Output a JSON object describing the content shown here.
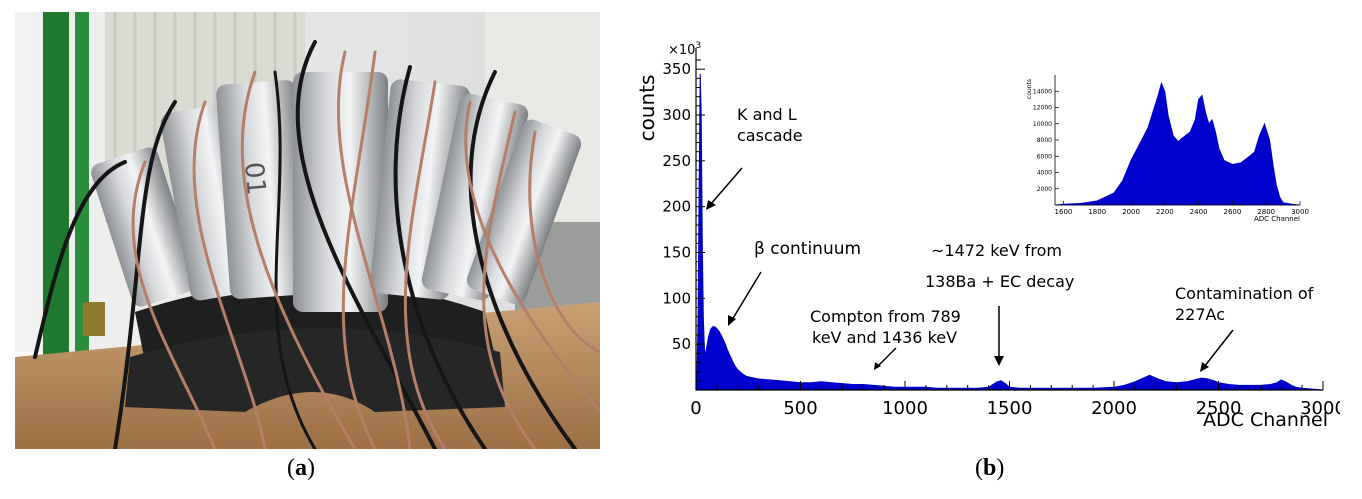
{
  "captions": {
    "a": {
      "open": "(",
      "letter": "a",
      "close": ")"
    },
    "b": {
      "open": "(",
      "letter": "b",
      "close": ")"
    }
  },
  "photo": {
    "stamp": "01",
    "colors": {
      "detector": "#b9bcc0",
      "base": "#1f1f1f",
      "table": "#b98a5d",
      "cable_copper": "#b47e6a",
      "cable_black": "#151515",
      "wall": "#e6e8e6",
      "green_frame": "#1f7a30"
    }
  },
  "chart_data": {
    "type": "area",
    "color": "#0000cc",
    "xlabel": "ADC Channel",
    "ylabel": "counts",
    "y_multiplier": "×10",
    "y_multiplier_exp": "3",
    "xlim": [
      0,
      3000
    ],
    "ylim": [
      0,
      360
    ],
    "xticks": [
      0,
      500,
      1000,
      1500,
      2000,
      2500,
      3000
    ],
    "yticks": [
      50,
      100,
      150,
      200,
      250,
      300,
      350
    ],
    "series": [
      {
        "x": [
          0,
          5,
          10,
          15,
          20,
          25,
          30,
          35,
          40,
          45,
          50,
          60,
          70,
          80,
          90,
          100,
          110,
          120,
          130,
          140,
          150,
          160,
          170,
          180,
          190,
          200,
          220,
          240,
          260,
          280,
          300,
          350,
          400,
          450,
          500,
          550,
          600,
          650,
          700,
          750,
          800,
          850,
          900,
          950,
          1000,
          1050,
          1100,
          1150,
          1200,
          1250,
          1300,
          1350,
          1400,
          1420,
          1440,
          1460,
          1480,
          1500,
          1550,
          1600,
          1700,
          1800,
          1900,
          2000,
          2050,
          2100,
          2140,
          2170,
          2200,
          2250,
          2300,
          2350,
          2400,
          2420,
          2450,
          2480,
          2500,
          2550,
          2600,
          2650,
          2700,
          2750,
          2780,
          2800,
          2820,
          2850,
          2870,
          2900,
          2950,
          3000
        ],
        "y": [
          0,
          18,
          80,
          220,
          345,
          300,
          160,
          80,
          45,
          38,
          45,
          58,
          66,
          69,
          69,
          67,
          64,
          60,
          55,
          50,
          44,
          39,
          34,
          29,
          25,
          22,
          18,
          15,
          14,
          13,
          12,
          11,
          10,
          9,
          8,
          8,
          9,
          8,
          7,
          6,
          6,
          5,
          4,
          3,
          3,
          3,
          3,
          2,
          2,
          2,
          2,
          2,
          3,
          6,
          9,
          10,
          7,
          3,
          2,
          2,
          2,
          2,
          2,
          3,
          5,
          9,
          13,
          16,
          13,
          9,
          8,
          9,
          12,
          13,
          12,
          10,
          8,
          6,
          5,
          5,
          5,
          6,
          8,
          11,
          9,
          5,
          3,
          2,
          1,
          0
        ]
      }
    ],
    "annotations": [
      {
        "lines": [
          "K and L",
          "cascade"
        ]
      },
      {
        "lines": [
          "β continuum"
        ]
      },
      {
        "lines": [
          "Compton from 789",
          "keV and 1436 keV"
        ]
      },
      {
        "lines": [
          "~1472 keV from",
          "138Ba + EC decay"
        ]
      },
      {
        "lines": [
          "Contamination of",
          "227Ac"
        ]
      }
    ],
    "inset": {
      "xlabel": "ADC Channel",
      "ylabel": "counts",
      "xlim": [
        1550,
        3000
      ],
      "ylim": [
        0,
        16000
      ],
      "xticks": [
        1600,
        1800,
        2000,
        2200,
        2400,
        2600,
        2800,
        3000
      ],
      "yticks": [
        2000,
        4000,
        6000,
        8000,
        10000,
        12000,
        14000
      ],
      "x": [
        1550,
        1600,
        1700,
        1800,
        1900,
        1950,
        2000,
        2050,
        2100,
        2130,
        2160,
        2180,
        2200,
        2220,
        2250,
        2280,
        2300,
        2350,
        2380,
        2400,
        2420,
        2440,
        2460,
        2480,
        2500,
        2520,
        2550,
        2600,
        2650,
        2700,
        2730,
        2760,
        2790,
        2820,
        2840,
        2860,
        2880,
        2900,
        2950,
        3000
      ],
      "y": [
        0,
        100,
        200,
        500,
        1500,
        3000,
        5500,
        7500,
        9500,
        11500,
        13500,
        15000,
        14000,
        11000,
        8500,
        7800,
        8200,
        9000,
        10500,
        13000,
        13500,
        11500,
        10000,
        10500,
        9000,
        7000,
        5500,
        5000,
        5200,
        6000,
        6500,
        8500,
        10000,
        8000,
        5000,
        2500,
        1000,
        300,
        100,
        0
      ]
    }
  }
}
